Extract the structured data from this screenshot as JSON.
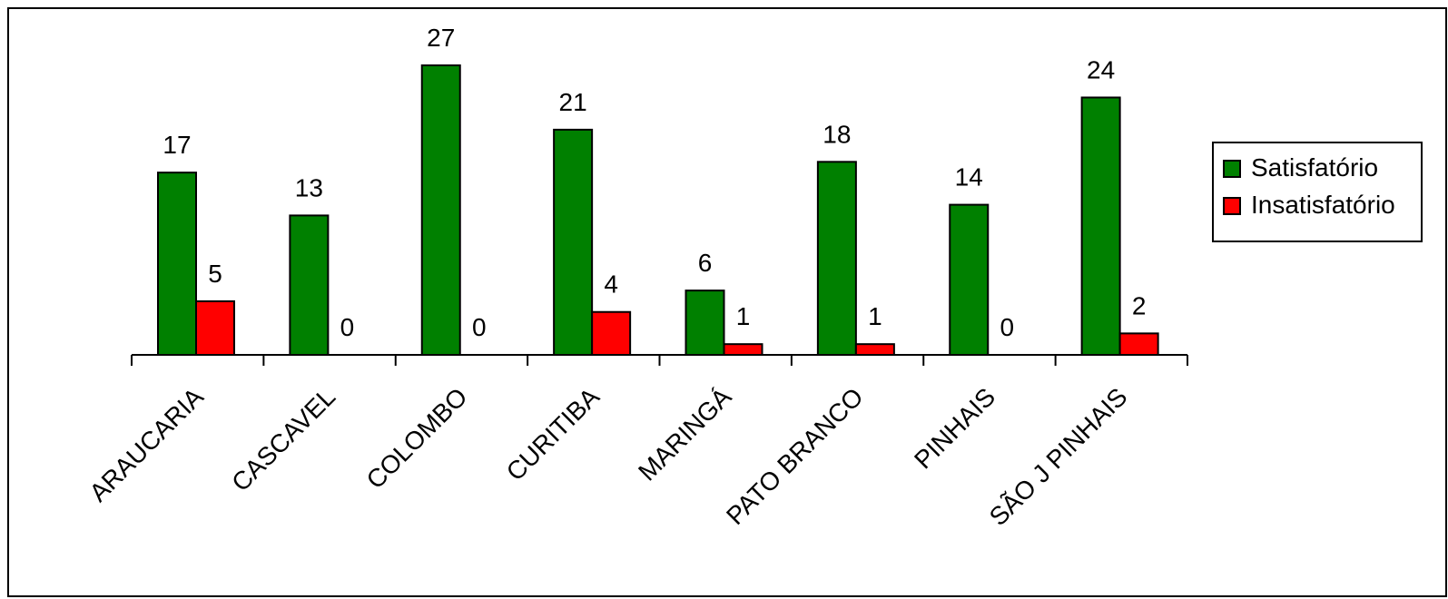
{
  "chart_data": {
    "type": "bar",
    "categories": [
      "ARAUCARIA",
      "CASCAVEL",
      "COLOMBO",
      "CURITIBA",
      "MARINGÁ",
      "PATO BRANCO",
      "PINHAIS",
      "SÃO J PINHAIS"
    ],
    "series": [
      {
        "name": "Satisfatório",
        "values": [
          17,
          13,
          27,
          21,
          6,
          18,
          14,
          24
        ],
        "color": "#008000"
      },
      {
        "name": "Insatisfatório",
        "values": [
          5,
          0,
          0,
          4,
          1,
          1,
          0,
          2
        ],
        "color": "#ff0000"
      }
    ],
    "ylim": [
      0,
      27
    ],
    "grid": false,
    "data_labels": true,
    "legend_position": "right"
  }
}
